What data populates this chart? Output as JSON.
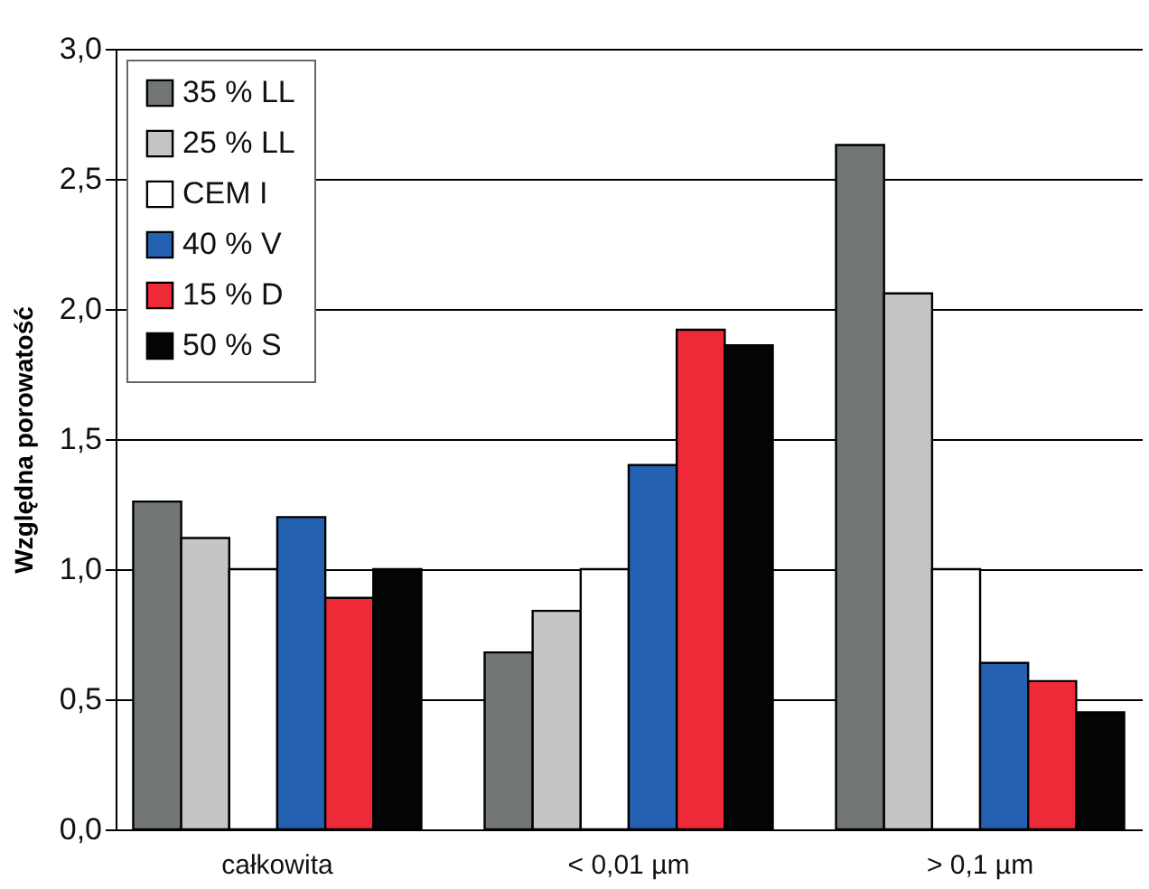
{
  "chart_data": {
    "type": "bar",
    "ylabel": "Względna porowatość",
    "categories": [
      "całkowita",
      "< 0,01 µm",
      "> 0,1 µm"
    ],
    "series": [
      {
        "name": "35 % LL",
        "color": "#737677",
        "values": [
          1.26,
          0.68,
          2.63
        ]
      },
      {
        "name": "25 % LL",
        "color": "#c6c5c4",
        "values": [
          1.12,
          0.84,
          2.06
        ]
      },
      {
        "name": "CEM I",
        "color": "#ffffff",
        "values": [
          1.0,
          1.0,
          1.0
        ]
      },
      {
        "name": "40 % V",
        "color": "#2461b0",
        "values": [
          1.2,
          1.4,
          0.64
        ]
      },
      {
        "name": "15 % D",
        "color": "#ee2a38",
        "values": [
          0.89,
          1.92,
          0.57
        ]
      },
      {
        "name": "50 % S",
        "color": "#030505",
        "values": [
          1.0,
          1.86,
          0.45
        ]
      }
    ],
    "ylim": [
      0,
      3
    ],
    "yticks": [
      {
        "value": 0,
        "label": "0,0"
      },
      {
        "value": 0.5,
        "label": "0,5"
      },
      {
        "value": 1,
        "label": "1,0"
      },
      {
        "value": 1.5,
        "label": "1,5"
      },
      {
        "value": 2,
        "label": "2,0"
      },
      {
        "value": 2.5,
        "label": "2,5"
      },
      {
        "value": 3,
        "label": "3,0"
      }
    ],
    "grid": "y",
    "legend": "top left"
  }
}
